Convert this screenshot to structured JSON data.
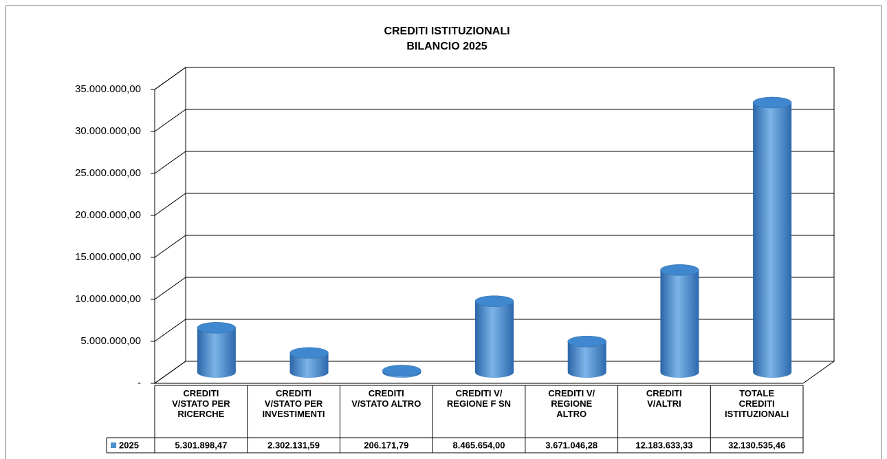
{
  "chart_data": {
    "type": "bar3d-cylinder",
    "title": "CREDITI ISTITUZIONALI",
    "subtitle": "BILANCIO 2025",
    "categories": [
      "CREDITI V/STATO PER RICERCHE",
      "CREDITI V/STATO PER INVESTIMENTI",
      "CREDITI V/STATO ALTRO",
      "CREDITI V/ REGIONE F SN",
      "CREDITI V/ REGIONE ALTRO",
      "CREDITI V/ALTRI",
      "TOTALE CREDITI ISTITUZIONALI"
    ],
    "series": [
      {
        "name": "2025",
        "color": "#4a90d0",
        "values": [
          5301898.47,
          2302131.59,
          206171.79,
          8465654.0,
          3671046.28,
          12183633.33,
          32130535.46
        ],
        "value_labels": [
          "5.301.898,47",
          "2.302.131,59",
          "206.171,79",
          "8.465.654,00",
          "3.671.046,28",
          "12.183.633,33",
          "32.130.535,46"
        ]
      }
    ],
    "ylim": [
      0,
      35000000
    ],
    "yticks": [
      {
        "value": 0,
        "label": "-"
      },
      {
        "value": 5000000,
        "label": "5.000.000,00"
      },
      {
        "value": 10000000,
        "label": "10.000.000,00"
      },
      {
        "value": 15000000,
        "label": "15.000.000,00"
      },
      {
        "value": 20000000,
        "label": "20.000.000,00"
      },
      {
        "value": 25000000,
        "label": "25.000.000,00"
      },
      {
        "value": 30000000,
        "label": "30.000.000,00"
      },
      {
        "value": 35000000,
        "label": "35.000.000,00"
      }
    ],
    "grid": true
  }
}
